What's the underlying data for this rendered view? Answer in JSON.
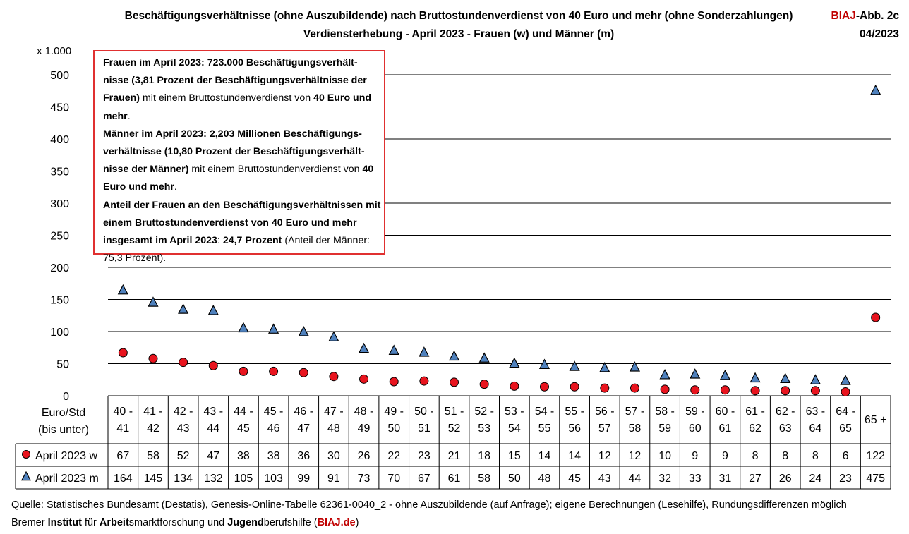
{
  "header": {
    "title_line1": "Beschäftigungsverhältnisse (ohne Auszubildende) nach Bruttostundenverdienst von 40 Euro und mehr (ohne Sonderzahlungen)",
    "title_line2": "Verdiensterhebung - April 2023 - Frauen (w) und Männer (m)",
    "tag_red": "BIAJ",
    "tag_rest": "-Abb. 2c",
    "tag_date": "04/2023"
  },
  "unit_label": "x 1.000",
  "x_axis_label_line1": "Euro/Std",
  "x_axis_label_line2": "(bis unter)",
  "infobox": {
    "p1_bold": "Frauen im April 2023:  723.000  Beschäftigungsverhält- nisse (3,81 Prozent der Beschäftigungsverhältnisse der Frauen)",
    "p1_rest": " mit einem Bruttostundenverdienst von ",
    "p1_bold2": "40 Euro und mehr",
    "p1_end": ".",
    "p2_bold": "Männer im April 2023:  2,203 Millionen Beschäftigungs- verhältnisse (10,80 Prozent der Beschäftigungsverhält- nisse der Männer)",
    "p2_rest": " mit einem Bruttostundenverdienst von ",
    "p2_bold2": "40 Euro und mehr",
    "p2_end": ".",
    "p3_bold": "Anteil der Frauen an den Beschäftigungsverhältnissen mit einem Bruttostundenverdienst von 40 Euro und mehr insgesamt im April 2023",
    "p3_mid": ": ",
    "p3_bold2": "24,7 Prozent",
    "p3_end": " (Anteil der Männer: 75,3 Prozent)."
  },
  "footer": {
    "line1": "Quelle: Statistisches Bundesamt (Destatis), Genesis-Online-Tabelle 62361-0040_2 - ohne Auszubildende (auf Anfrage); eigene Berechnungen (Lesehilfe), Rundungsdifferenzen möglich",
    "l2_a": "Bremer ",
    "l2_b": "Institut",
    "l2_c": " für ",
    "l2_d": "Arbeit",
    "l2_e": "smarktforschung und ",
    "l2_f": "Jugend",
    "l2_g": "berufshilfe (",
    "l2_h": "BIAJ.de",
    "l2_i": ")"
  },
  "colors": {
    "women": "#e8141e",
    "men": "#4f81bd",
    "gridline": "#000000",
    "accent_red": "#c00000"
  },
  "chart_data": {
    "type": "scatter",
    "categories": [
      [
        "40 -",
        "41"
      ],
      [
        "41 -",
        "42"
      ],
      [
        "42 -",
        "43"
      ],
      [
        "43 -",
        "44"
      ],
      [
        "44 -",
        "45"
      ],
      [
        "45 -",
        "46"
      ],
      [
        "46 -",
        "47"
      ],
      [
        "47 -",
        "48"
      ],
      [
        "48 -",
        "49"
      ],
      [
        "49 -",
        "50"
      ],
      [
        "50 -",
        "51"
      ],
      [
        "51 -",
        "52"
      ],
      [
        "52 -",
        "53"
      ],
      [
        "53 -",
        "54"
      ],
      [
        "54 -",
        "55"
      ],
      [
        "55 -",
        "56"
      ],
      [
        "56 -",
        "57"
      ],
      [
        "57 -",
        "58"
      ],
      [
        "58 -",
        "59"
      ],
      [
        "59 -",
        "60"
      ],
      [
        "60 -",
        "61"
      ],
      [
        "61 -",
        "62"
      ],
      [
        "62 -",
        "63"
      ],
      [
        "63 -",
        "64"
      ],
      [
        "64 -",
        "65"
      ],
      [
        "65 +"
      ]
    ],
    "series": [
      {
        "name": "April 2023 w",
        "marker": "circle",
        "values": [
          67,
          58,
          52,
          47,
          38,
          38,
          36,
          30,
          26,
          22,
          23,
          21,
          18,
          15,
          14,
          14,
          12,
          12,
          10,
          9,
          9,
          8,
          8,
          8,
          6,
          122
        ]
      },
      {
        "name": "April 2023 m",
        "marker": "triangle",
        "values": [
          164,
          145,
          134,
          132,
          105,
          103,
          99,
          91,
          73,
          70,
          67,
          61,
          58,
          50,
          48,
          45,
          43,
          44,
          32,
          33,
          31,
          27,
          26,
          24,
          23,
          475
        ]
      }
    ],
    "y_ticks": [
      "0",
      "50",
      "100",
      "150",
      "200",
      "250",
      "300",
      "350",
      "400",
      "450",
      "500"
    ],
    "ylim": [
      0,
      500
    ],
    "grid": true,
    "data_table": true
  }
}
